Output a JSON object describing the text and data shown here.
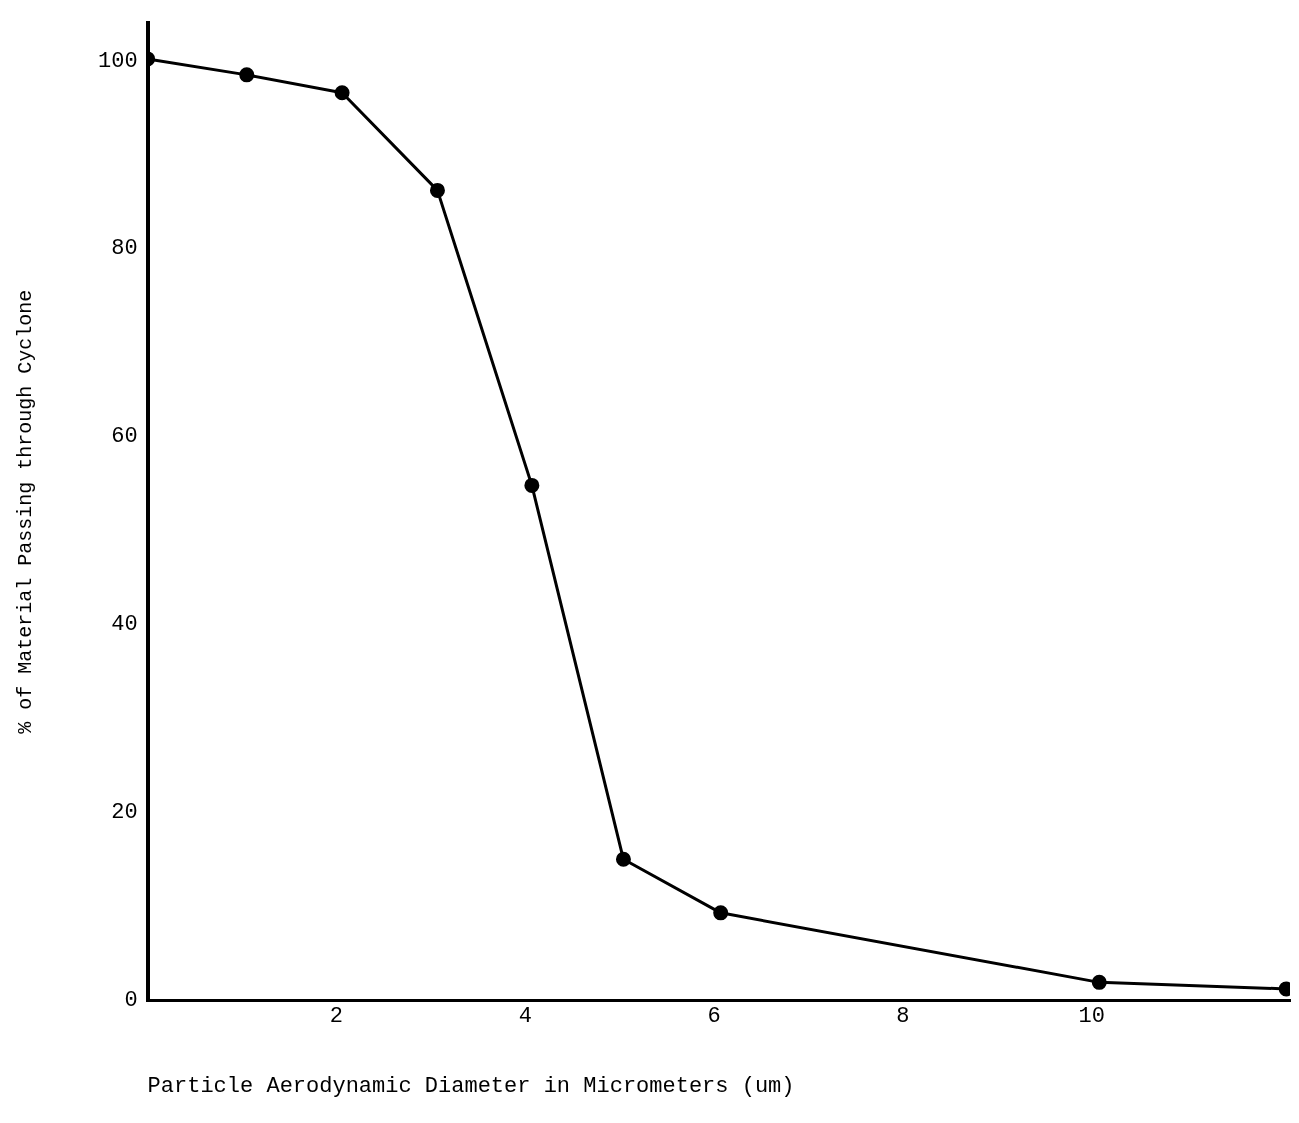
{
  "chart_data": {
    "type": "line",
    "xlabel": "Particle Aerodynamic Diameter in Micrometers (um)",
    "ylabel": "% of Material Passing through Cyclone",
    "x": [
      0,
      1.05,
      2.06,
      3.07,
      4.07,
      5.04,
      6.07,
      10.08,
      12.06
    ],
    "series": [
      {
        "color": "#000000",
        "values": [
          100.2,
          98.5,
          96.6,
          86.2,
          54.8,
          15.0,
          9.3,
          1.9,
          1.2
        ]
      }
    ],
    "xlim": [
      0,
      12.1
    ],
    "xticks": [
      2,
      4,
      6,
      8,
      10
    ],
    "ylim": [
      0,
      104
    ],
    "yticks": [
      0,
      20,
      40,
      60,
      80,
      100
    ],
    "grid": false,
    "legend": false,
    "marker": "circle",
    "line_style": "solid"
  }
}
